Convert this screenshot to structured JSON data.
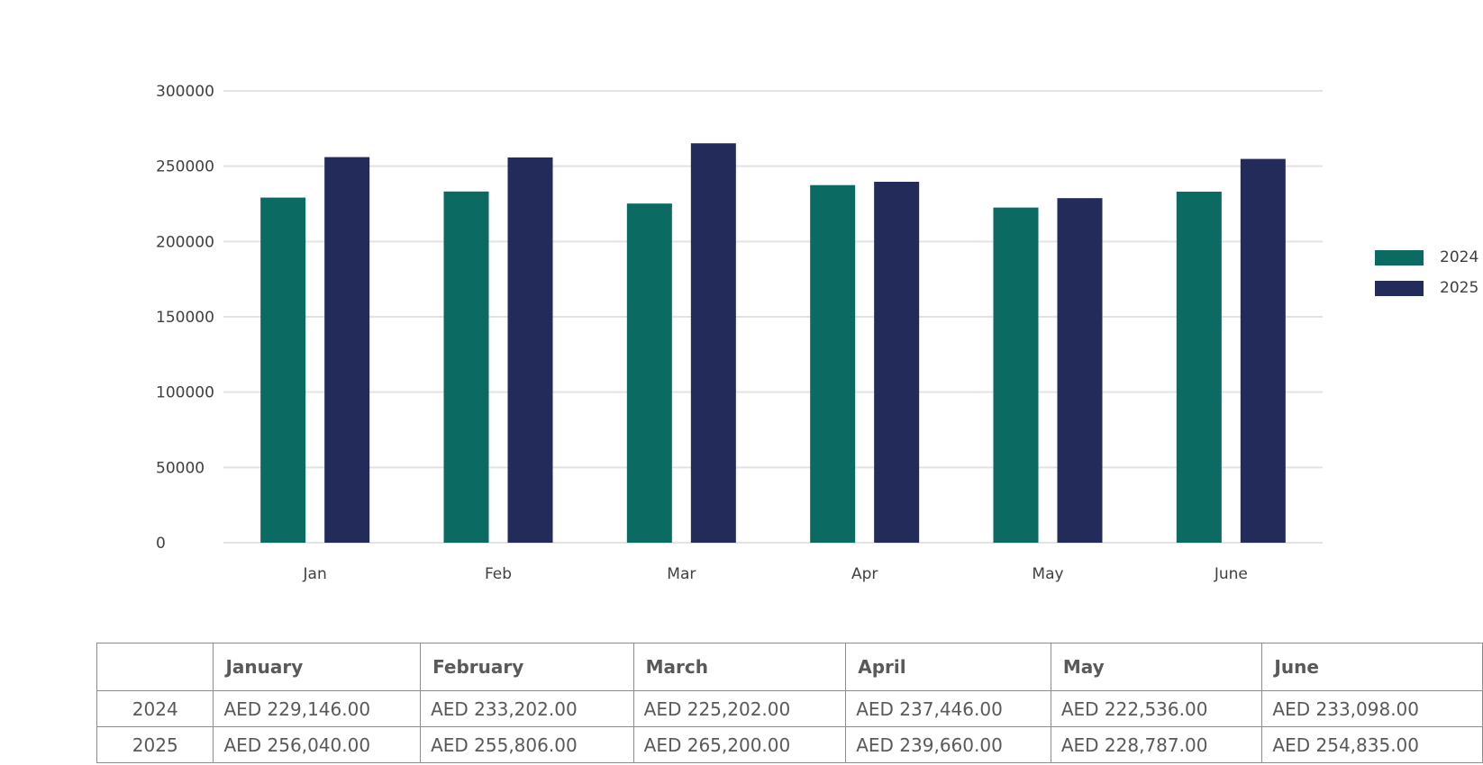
{
  "chart_data": {
    "type": "bar",
    "categories": [
      "Jan",
      "Feb",
      "Mar",
      "Apr",
      "May",
      "June"
    ],
    "series": [
      {
        "name": "2024",
        "values": [
          229146,
          233202,
          225202,
          237446,
          222536,
          233098
        ],
        "color": "#0b6b63"
      },
      {
        "name": "2025",
        "values": [
          256040,
          255806,
          265200,
          239660,
          228787,
          254835
        ],
        "color": "#232b5a"
      }
    ],
    "ylim": [
      0,
      300000
    ],
    "yticks": [
      "0",
      "50000",
      "100000",
      "150000",
      "200000",
      "250000",
      "300000"
    ],
    "grid": true,
    "legend_position": "right",
    "gridline_color": "#e3e3e3"
  },
  "table": {
    "header": [
      "",
      "January",
      "February",
      "March",
      "April",
      "May",
      "June"
    ],
    "rows": [
      {
        "year": "2024",
        "values": [
          "AED 229,146.00",
          "AED 233,202.00",
          "AED 225,202.00",
          "AED 237,446.00",
          "AED 222,536.00",
          "AED 233,098.00"
        ]
      },
      {
        "year": "2025",
        "values": [
          "AED 256,040.00",
          "AED 255,806.00",
          "AED 265,200.00",
          "AED 239,660.00",
          "AED 228,787.00",
          "AED 254,835.00"
        ]
      }
    ]
  }
}
